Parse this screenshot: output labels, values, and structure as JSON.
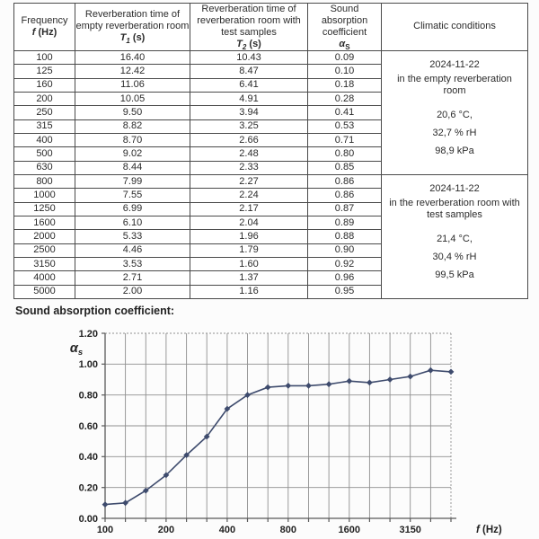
{
  "table": {
    "headers": {
      "frequency": {
        "line1": "Frequency",
        "symbol": "f",
        "unit": " (Hz)"
      },
      "t1": {
        "text": "Reverberation time of empty reverberation room",
        "symbol": "T",
        "sub": "1",
        "unit": " (s)"
      },
      "t2": {
        "text": "Reverberation time of reverberation room with test samples",
        "symbol": "T",
        "sub": "2",
        "unit": " (s)"
      },
      "alpha": {
        "text": "Sound absorption coefficient",
        "symbol": "α",
        "sub": "S"
      },
      "climatic": "Climatic conditions"
    },
    "rows": [
      [
        "100",
        "16.40",
        "10.43",
        "0.09"
      ],
      [
        "125",
        "12.42",
        "8.47",
        "0.10"
      ],
      [
        "160",
        "11.06",
        "6.41",
        "0.18"
      ],
      [
        "200",
        "10.05",
        "4.91",
        "0.28"
      ],
      [
        "250",
        "9.50",
        "3.94",
        "0.41"
      ],
      [
        "315",
        "8.82",
        "3.25",
        "0.53"
      ],
      [
        "400",
        "8.70",
        "2.66",
        "0.71"
      ],
      [
        "500",
        "9.02",
        "2.48",
        "0.80"
      ],
      [
        "630",
        "8.44",
        "2.33",
        "0.85"
      ],
      [
        "800",
        "7.99",
        "2.27",
        "0.86"
      ],
      [
        "1000",
        "7.55",
        "2.24",
        "0.86"
      ],
      [
        "1250",
        "6.99",
        "2.17",
        "0.87"
      ],
      [
        "1600",
        "6.10",
        "2.04",
        "0.89"
      ],
      [
        "2000",
        "5.33",
        "1.96",
        "0.88"
      ],
      [
        "2500",
        "4.46",
        "1.79",
        "0.90"
      ],
      [
        "3150",
        "3.53",
        "1.60",
        "0.92"
      ],
      [
        "4000",
        "2.71",
        "1.37",
        "0.96"
      ],
      [
        "5000",
        "2.00",
        "1.16",
        "0.95"
      ]
    ],
    "climatic_cells": [
      {
        "row_span": 9,
        "date": "2024-11-22",
        "location": "in the empty reverberation room",
        "temperature": "20,6 °C,",
        "humidity": "32,7 % rH",
        "pressure": "98,9 kPa"
      },
      {
        "row_span": 9,
        "date": "2024-11-22",
        "location": "in the reverberation room with test samples",
        "temperature": "21,4 °C,",
        "humidity": "30,4 % rH",
        "pressure": "99,5 kPa"
      }
    ]
  },
  "section_title": "Sound absorption coefficient:",
  "chart_data": {
    "type": "line",
    "title": "Sound absorption coefficient:",
    "x": [
      100,
      125,
      160,
      200,
      250,
      315,
      400,
      500,
      630,
      800,
      1000,
      1250,
      1600,
      2000,
      2500,
      3150,
      4000,
      5000
    ],
    "values": [
      0.09,
      0.1,
      0.18,
      0.28,
      0.41,
      0.53,
      0.71,
      0.8,
      0.85,
      0.86,
      0.86,
      0.87,
      0.89,
      0.88,
      0.9,
      0.92,
      0.96,
      0.95
    ],
    "x_scale": "log-band-equal-spacing",
    "ylim": [
      0,
      1.2
    ],
    "ytick_step": 0.2,
    "ytick_labels": [
      "0.00",
      "0.20",
      "0.40",
      "0.60",
      "0.80",
      "1.00",
      "1.20"
    ],
    "x_tick_label_indices": [
      0,
      3,
      6,
      9,
      12,
      15
    ],
    "x_tick_labels": [
      "100",
      "200",
      "400",
      "800",
      "1600",
      "3150"
    ],
    "ylabel_symbol": "α",
    "ylabel_sub": "s",
    "xlabel_symbol": "f",
    "xlabel_unit": " (Hz)",
    "grid": true,
    "legend": "none",
    "line_color": "#3e4b6d",
    "grid_color": "#8f8f8f",
    "axis_color": "#5a5a5a",
    "text_color": "#222222"
  }
}
